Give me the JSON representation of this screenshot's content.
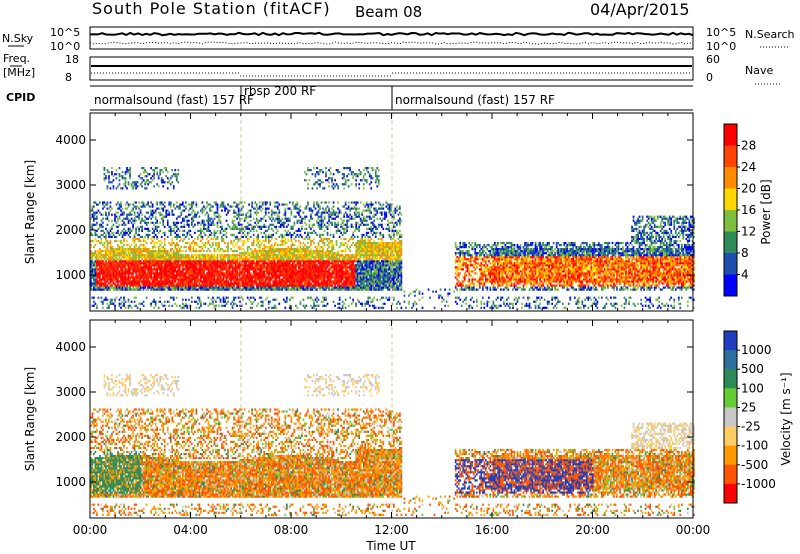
{
  "header": {
    "title": "South Pole Station (fitACF)",
    "beam": "Beam 08",
    "date": "04/Apr/2015"
  },
  "top_panels": {
    "nsky_label": "N.Sky",
    "nsky_ticks": [
      "10^5",
      "10^0"
    ],
    "nsearch_label": "N.Search",
    "freq_label_1": "Freq.",
    "freq_label_2": "[MHz]",
    "freq_ticks": [
      "18",
      "8"
    ],
    "nave_label": "Nave",
    "nave_ticks": [
      "60",
      "0"
    ],
    "cpid_label": "CPID",
    "cpid_segments": [
      {
        "label": "normalsound (fast) 157 RF",
        "start_hour": 0,
        "end_hour": 6
      },
      {
        "label": "rbsp 200 RF",
        "start_hour": 6,
        "end_hour": 12
      },
      {
        "label": "normalsound (fast) 157 RF",
        "start_hour": 12,
        "end_hour": 24
      }
    ]
  },
  "colorbars": {
    "power": {
      "label": "Power [dB]",
      "ticks": [
        "28",
        "24",
        "20",
        "16",
        "12",
        "8",
        "4"
      ],
      "colors": [
        "#ff0000",
        "#ff4500",
        "#ff8c00",
        "#ffd700",
        "#7fbf3f",
        "#2e8b57",
        "#1c4fb0",
        "#0000ff"
      ]
    },
    "velocity": {
      "label": "Velocity [m s⁻¹]",
      "ticks": [
        "1000",
        "500",
        "100",
        "25",
        "-25",
        "-100",
        "-500",
        "-1000"
      ],
      "colors": [
        "#1f3fc0",
        "#2e6fa0",
        "#2e8b57",
        "#66cc33",
        "#c8c8c8",
        "#ffcc66",
        "#ff9900",
        "#ff5500",
        "#ff0000"
      ]
    }
  },
  "chart_data": [
    {
      "type": "heatmap",
      "title": "",
      "ylabel": "Slant Range [km]",
      "xlabel": "",
      "xlim": [
        0,
        24
      ],
      "ylim": [
        200,
        4600
      ],
      "yticks": [
        "1000",
        "2000",
        "3000",
        "4000"
      ],
      "quantity": "Power [dB]",
      "value_range": [
        0,
        30
      ],
      "gaps_hours": [
        [
          12.4,
          14.5
        ]
      ],
      "main_echo_band_km": [
        600,
        1600
      ],
      "peak_power_dB": 28
    },
    {
      "type": "heatmap",
      "title": "",
      "ylabel": "Slant Range [km]",
      "xlabel": "Time UT",
      "xlim": [
        0,
        24
      ],
      "ylim": [
        200,
        4600
      ],
      "yticks": [
        "1000",
        "2000",
        "3000",
        "4000"
      ],
      "xticks": [
        "00:00",
        "04:00",
        "08:00",
        "12:00",
        "16:00",
        "20:00",
        "00:00"
      ],
      "quantity": "Velocity [m s⁻¹]",
      "value_range": [
        -1000,
        1000
      ],
      "gaps_hours": [
        [
          12.4,
          14.5
        ]
      ],
      "main_echo_band_km": [
        600,
        1600
      ]
    }
  ]
}
